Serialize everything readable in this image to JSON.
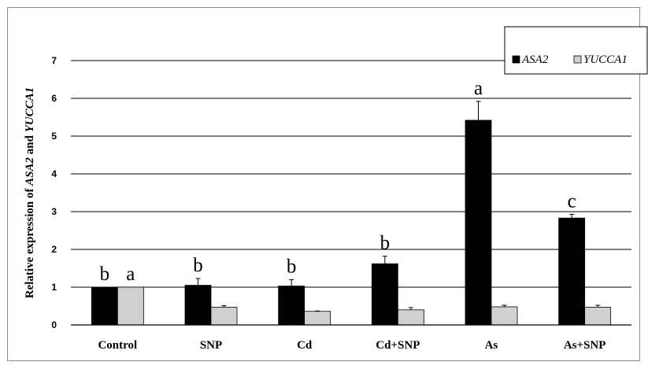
{
  "chart_data": {
    "type": "bar",
    "ylabel": {
      "parts": [
        {
          "text": "Relative expression of ",
          "italic": false
        },
        {
          "text": "ASA2",
          "italic": true
        },
        {
          "text": " and ",
          "italic": false
        },
        {
          "text": "YUCCA1",
          "italic": true
        }
      ]
    },
    "ylim": [
      0,
      7
    ],
    "yticks": [
      "0",
      "1",
      "2",
      "3",
      "4",
      "5",
      "6",
      "7"
    ],
    "grid": true,
    "legend_position": "top-right",
    "categories": [
      "Control",
      "SNP",
      "Cd",
      "Cd+SNP",
      "As",
      "As+SNP"
    ],
    "series": [
      {
        "name": "ASA2",
        "color": "#000000",
        "values": [
          1.0,
          1.05,
          1.03,
          1.62,
          5.42,
          2.83
        ],
        "errors": [
          0.0,
          0.18,
          0.17,
          0.2,
          0.5,
          0.1
        ]
      },
      {
        "name": "YUCCA1",
        "color": "#d0d0d0",
        "values": [
          1.0,
          0.47,
          0.36,
          0.4,
          0.48,
          0.47
        ],
        "errors": [
          0.0,
          0.04,
          0.01,
          0.06,
          0.04,
          0.05
        ]
      }
    ],
    "annotations": [
      {
        "category": "Control",
        "series": "ASA2",
        "text": "b"
      },
      {
        "category": "Control",
        "series": "YUCCA1",
        "text": "a"
      },
      {
        "category": "SNP",
        "series": "ASA2",
        "text": "b"
      },
      {
        "category": "Cd",
        "series": "ASA2",
        "text": "b"
      },
      {
        "category": "Cd+SNP",
        "series": "ASA2",
        "text": "b"
      },
      {
        "category": "As",
        "series": "ASA2",
        "text": "a"
      },
      {
        "category": "As+SNP",
        "series": "ASA2",
        "text": "c"
      }
    ]
  }
}
